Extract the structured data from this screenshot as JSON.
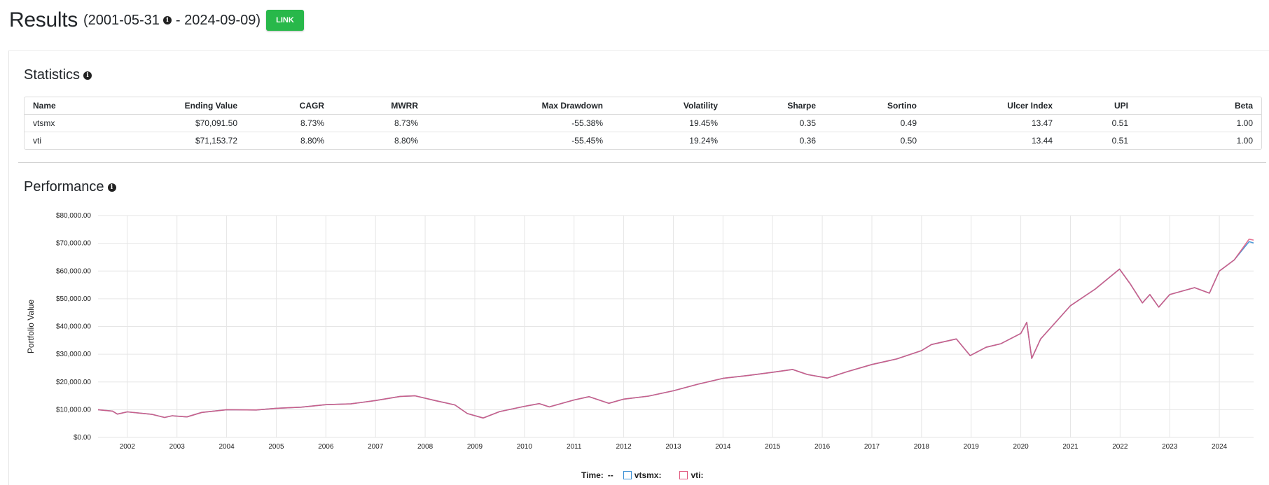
{
  "header": {
    "title": "Results",
    "range_start": "(2001-05-31",
    "range_end": "- 2024-09-09)",
    "link_label": "LINK"
  },
  "statistics": {
    "title": "Statistics",
    "columns": [
      "Name",
      "Ending Value",
      "CAGR",
      "MWRR",
      "Max Drawdown",
      "Volatility",
      "Sharpe",
      "Sortino",
      "Ulcer Index",
      "UPI",
      "Beta"
    ],
    "rows": [
      [
        "vtsmx",
        "$70,091.50",
        "8.73%",
        "8.73%",
        "-55.38%",
        "19.45%",
        "0.35",
        "0.49",
        "13.47",
        "0.51",
        "1.00"
      ],
      [
        "vti",
        "$71,153.72",
        "8.80%",
        "8.80%",
        "-55.45%",
        "19.24%",
        "0.36",
        "0.50",
        "13.44",
        "0.51",
        "1.00"
      ]
    ]
  },
  "performance": {
    "title": "Performance"
  },
  "legend": {
    "time_label": "Time:",
    "time_value": "--",
    "series": [
      {
        "label": "vtsmx:",
        "color": "#3a8fd4"
      },
      {
        "label": "vti:",
        "color": "#e0567c"
      }
    ]
  },
  "chart_data": {
    "type": "line",
    "ylabel": "Portfolio Value",
    "xlabel": "",
    "ylim": [
      0,
      80000
    ],
    "y_ticks": [
      "$0.00",
      "$10,000.00",
      "$20,000.00",
      "$30,000.00",
      "$40,000.00",
      "$50,000.00",
      "$60,000.00",
      "$70,000.00",
      "$80,000.00"
    ],
    "x_ticks": [
      "2002",
      "2003",
      "2004",
      "2005",
      "2006",
      "2007",
      "2008",
      "2009",
      "2010",
      "2011",
      "2012",
      "2013",
      "2014",
      "2015",
      "2016",
      "2017",
      "2018",
      "2019",
      "2020",
      "2021",
      "2022",
      "2023",
      "2024"
    ],
    "grid": true,
    "x": [
      2001.41,
      2001.7,
      2001.8,
      2002.0,
      2002.5,
      2002.75,
      2002.9,
      2003.2,
      2003.5,
      2004.0,
      2004.6,
      2005.0,
      2005.5,
      2006.0,
      2006.5,
      2007.0,
      2007.5,
      2007.8,
      2008.2,
      2008.6,
      2008.85,
      2009.17,
      2009.5,
      2010.0,
      2010.3,
      2010.5,
      2011.0,
      2011.3,
      2011.7,
      2012.0,
      2012.5,
      2013.0,
      2013.5,
      2014.0,
      2014.5,
      2015.0,
      2015.4,
      2015.7,
      2016.1,
      2016.5,
      2017.0,
      2017.5,
      2018.0,
      2018.2,
      2018.7,
      2018.98,
      2019.3,
      2019.6,
      2020.0,
      2020.12,
      2020.22,
      2020.4,
      2020.7,
      2021.0,
      2021.5,
      2021.99,
      2022.2,
      2022.45,
      2022.6,
      2022.78,
      2023.0,
      2023.5,
      2023.8,
      2024.0,
      2024.3,
      2024.6,
      2024.69
    ],
    "series": [
      {
        "name": "vtsmx",
        "values": [
          10000,
          9500,
          8400,
          9200,
          8300,
          7200,
          7800,
          7400,
          9000,
          10000,
          9900,
          10500,
          10900,
          11800,
          12100,
          13300,
          14800,
          15000,
          13300,
          11700,
          8600,
          7000,
          9300,
          11200,
          12200,
          11000,
          13500,
          14700,
          12300,
          13800,
          14900,
          16800,
          19200,
          21300,
          22300,
          23500,
          24500,
          22700,
          21400,
          23700,
          26300,
          28300,
          31300,
          33500,
          35500,
          29500,
          32500,
          33800,
          37500,
          41500,
          28500,
          35500,
          41500,
          47500,
          53500,
          60700,
          55500,
          48500,
          51500,
          47000,
          51500,
          54000,
          52000,
          60000,
          64000,
          70600,
          70091.5
        ]
      },
      {
        "name": "vti",
        "values": [
          10000,
          9500,
          8400,
          9200,
          8300,
          7200,
          7800,
          7400,
          9000,
          10000,
          9900,
          10500,
          10900,
          11800,
          12100,
          13300,
          14800,
          15000,
          13300,
          11700,
          8600,
          7000,
          9300,
          11200,
          12200,
          11000,
          13500,
          14700,
          12300,
          13800,
          14900,
          16800,
          19200,
          21300,
          22300,
          23500,
          24500,
          22700,
          21400,
          23700,
          26300,
          28300,
          31300,
          33500,
          35500,
          29500,
          32500,
          33800,
          37500,
          41500,
          28500,
          35500,
          41500,
          47500,
          53500,
          60700,
          55500,
          48500,
          51500,
          47000,
          51500,
          54000,
          52000,
          60000,
          64000,
          71500,
          71153.72
        ]
      }
    ]
  }
}
